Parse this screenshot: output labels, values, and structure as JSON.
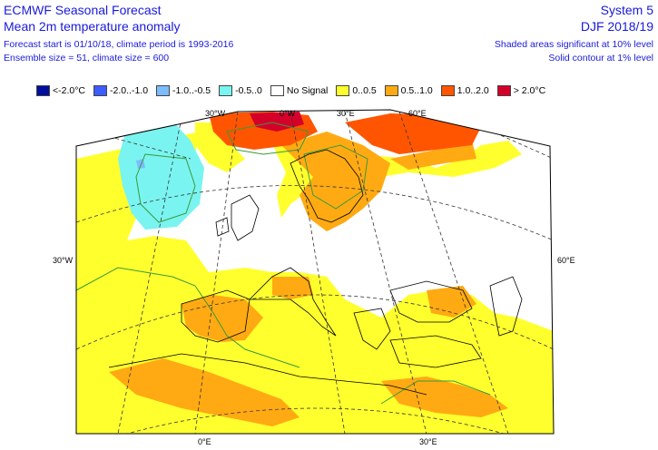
{
  "header": {
    "title": "ECMWF Seasonal Forecast",
    "subtitle": "Mean 2m temperature anomaly",
    "line3": "Forecast start is 01/10/18, climate period is 1993-2016",
    "line4": "Ensemble size = 51, climate size = 600",
    "system": "System 5",
    "season": "DJF 2018/19",
    "note1": "Shaded areas significant at 10% level",
    "note2": "Solid contour at 1% level"
  },
  "legend": [
    {
      "label": "<-2.0°C",
      "color": "#000f9c"
    },
    {
      "label": "-2.0..-1.0",
      "color": "#3c5cff"
    },
    {
      "label": "-1.0..-0.5",
      "color": "#7cbcff"
    },
    {
      "label": "-0.5..0",
      "color": "#7af4f0"
    },
    {
      "label": "No Signal",
      "color": "#ffffff"
    },
    {
      "label": "0..0.5",
      "color": "#ffff2e"
    },
    {
      "label": "0.5..1.0",
      "color": "#ffaa12"
    },
    {
      "label": "1.0..2.0",
      "color": "#ff5500"
    },
    {
      "label": "> 2.0°C",
      "color": "#d4002a"
    }
  ],
  "grid_labels": {
    "top_30w": "30°W",
    "top_0e": "0°W",
    "top_30e": "30°E",
    "top_60e": "60°E",
    "left_30w": "30°W",
    "right_60e": "60°E",
    "bottom_0e": "0°E",
    "bottom_30e": "30°E"
  },
  "colors": {
    "header_text": "#1a1adb",
    "contour": "#3a9a3a",
    "coast": "#000000",
    "grid": "#333333"
  }
}
